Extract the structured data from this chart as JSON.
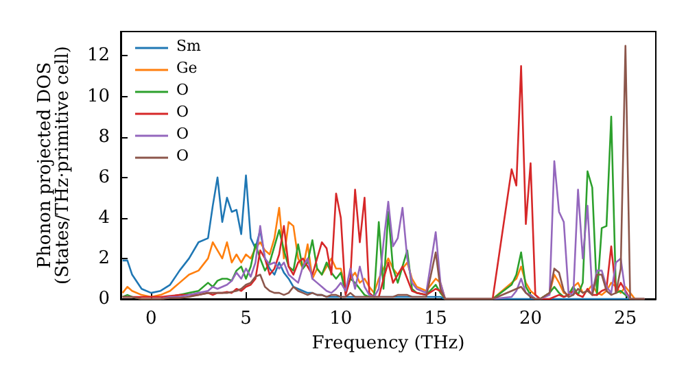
{
  "chart_data": {
    "type": "line",
    "xlabel": "Frequency (THz)",
    "ylabel": "Phonon projected DOS\n(States/THz·primitive cell)",
    "x": [
      -1.5,
      -1.25,
      -1,
      -0.5,
      0,
      0.5,
      1,
      1.5,
      2,
      2.5,
      3,
      3.25,
      3.5,
      3.75,
      4,
      4.25,
      4.5,
      4.75,
      5,
      5.25,
      5.5,
      5.75,
      6,
      6.25,
      6.5,
      6.75,
      7,
      7.25,
      7.5,
      7.75,
      8,
      8.25,
      8.5,
      8.75,
      9,
      9.25,
      9.5,
      9.75,
      10,
      10.25,
      10.5,
      10.75,
      11,
      11.25,
      11.5,
      11.75,
      12,
      12.25,
      12.5,
      12.75,
      13,
      13.25,
      13.5,
      13.75,
      14,
      14.5,
      15,
      15.25,
      15.5,
      16,
      18,
      19,
      19.25,
      19.5,
      19.75,
      20,
      20.25,
      20.5,
      21,
      21.25,
      21.5,
      21.75,
      22,
      22.25,
      22.5,
      22.75,
      23,
      23.25,
      23.5,
      23.75,
      24,
      24.25,
      24.5,
      24.75,
      25,
      25.25,
      25.5,
      26
    ],
    "series": [
      {
        "name": "Sm",
        "color": "#1f77b4",
        "values": [
          1.9,
          1.9,
          1.2,
          0.5,
          0.3,
          0.4,
          0.7,
          1.4,
          2.0,
          2.8,
          3.0,
          4.6,
          6.0,
          3.8,
          5.0,
          4.3,
          4.4,
          3.2,
          6.1,
          3.0,
          2.5,
          3.4,
          2.0,
          1.5,
          1.2,
          1.8,
          1.3,
          1.0,
          0.6,
          0.5,
          0.4,
          0.3,
          0.3,
          0.2,
          0.2,
          0.1,
          0.1,
          0.1,
          0.1,
          0.1,
          0.1,
          0.1,
          0.1,
          0.1,
          0.1,
          0.1,
          0.1,
          0.1,
          0.1,
          0.1,
          0.1,
          0.1,
          0.1,
          0.1,
          0.1,
          0.1,
          0.1,
          0.1,
          0,
          0,
          0,
          0,
          0,
          0,
          0,
          0,
          0,
          0,
          0,
          0,
          0,
          0,
          0,
          0,
          0,
          0,
          0,
          0,
          0,
          0,
          0,
          0,
          0,
          0,
          0,
          0,
          0,
          0
        ]
      },
      {
        "name": "Ge",
        "color": "#ff7f0e",
        "values": [
          0.3,
          0.6,
          0.4,
          0.2,
          0.1,
          0.2,
          0.4,
          0.8,
          1.2,
          1.4,
          2.0,
          2.8,
          2.4,
          2.0,
          2.8,
          1.8,
          2.2,
          1.8,
          2.2,
          2.0,
          2.5,
          2.8,
          2.4,
          2.2,
          3.0,
          4.5,
          2.0,
          3.8,
          3.6,
          2.0,
          1.5,
          2.7,
          1.0,
          1.5,
          1.2,
          1.6,
          2.0,
          1.5,
          1.5,
          0.5,
          1.0,
          1.3,
          0.8,
          1.0,
          0.6,
          0.3,
          1.0,
          1.5,
          2.0,
          1.5,
          1.2,
          1.5,
          1.8,
          1.0,
          0.6,
          0.4,
          1.0,
          0.8,
          0,
          0,
          0,
          0.8,
          1.0,
          1.6,
          0.8,
          0.4,
          0.2,
          0,
          0.3,
          1.2,
          0.8,
          0.3,
          0.2,
          0.6,
          0.8,
          0.3,
          0.4,
          0.7,
          0.3,
          0.2,
          0.4,
          0.8,
          0.6,
          0.3,
          0.6,
          0.3,
          0,
          0
        ]
      },
      {
        "name": "O",
        "color": "#2ca02c",
        "values": [
          0.1,
          0.2,
          0.1,
          0,
          0,
          0,
          0.1,
          0.2,
          0.3,
          0.4,
          0.8,
          0.6,
          0.9,
          1.0,
          1.0,
          0.9,
          1.4,
          1.6,
          1.0,
          1.6,
          2.7,
          2.0,
          1.4,
          1.8,
          2.6,
          3.4,
          2.4,
          1.6,
          1.4,
          2.7,
          1.5,
          1.8,
          2.9,
          1.5,
          1.2,
          1.8,
          1.3,
          1.0,
          1.3,
          0.3,
          1.0,
          0.8,
          0.5,
          0.2,
          0.1,
          0.1,
          3.8,
          0.5,
          4.3,
          1.5,
          0.8,
          1.6,
          2.4,
          0.5,
          0.3,
          0.2,
          0.7,
          0.3,
          0,
          0,
          0,
          0.7,
          1.2,
          2.3,
          0.6,
          0.2,
          0,
          0,
          0.3,
          0.6,
          0.3,
          0.1,
          0.2,
          0.6,
          0.2,
          0.8,
          6.3,
          5.5,
          0.2,
          3.5,
          3.6,
          9.0,
          0.3,
          0.4,
          0.2,
          0,
          0,
          0
        ]
      },
      {
        "name": "O",
        "color": "#d62728",
        "values": [
          0.1,
          0.1,
          0.1,
          0.1,
          0.1,
          0.1,
          0.15,
          0.2,
          0.2,
          0.2,
          0.3,
          0.2,
          0.3,
          0.3,
          0.35,
          0.3,
          0.5,
          0.4,
          0.6,
          0.7,
          1.0,
          2.4,
          2.0,
          1.2,
          1.5,
          2.2,
          3.6,
          1.6,
          1.2,
          1.8,
          2.0,
          1.6,
          1.2,
          2.0,
          2.8,
          2.5,
          1.2,
          5.2,
          4.0,
          0.2,
          1.0,
          5.4,
          2.8,
          5.0,
          0.3,
          0.1,
          0.1,
          1.0,
          1.8,
          0.8,
          1.2,
          1.6,
          1.0,
          0.4,
          0.3,
          0.2,
          0.5,
          0.4,
          0,
          0,
          0,
          6.4,
          5.6,
          11.5,
          3.7,
          6.7,
          0.2,
          0,
          0,
          0.1,
          0.2,
          0.1,
          0.2,
          0.4,
          0.2,
          0.1,
          0.5,
          0.2,
          0.2,
          0.4,
          0.5,
          2.6,
          0.3,
          0.8,
          0.4,
          0,
          0,
          0
        ]
      },
      {
        "name": "O",
        "color": "#9467bd",
        "values": [
          null,
          null,
          null,
          null,
          0,
          0,
          0.1,
          0.1,
          0.2,
          0.3,
          0.4,
          0.6,
          0.5,
          0.6,
          0.7,
          0.9,
          1.3,
          1.0,
          1.5,
          1.1,
          1.8,
          3.6,
          2.0,
          1.7,
          1.8,
          1.5,
          1.8,
          1.2,
          1.0,
          0.8,
          1.6,
          2.0,
          1.0,
          0.8,
          0.6,
          0.4,
          0.3,
          0.5,
          0.8,
          0.4,
          1.5,
          0.5,
          1.6,
          0.6,
          0.2,
          0.1,
          0.5,
          2.8,
          4.8,
          2.6,
          3.0,
          4.5,
          2.0,
          0.8,
          0.5,
          0.3,
          3.3,
          0.8,
          0,
          0,
          0,
          0.1,
          0.4,
          1.0,
          0.3,
          0.2,
          0,
          0,
          0.2,
          6.8,
          4.3,
          3.8,
          0.3,
          0.2,
          5.4,
          2.0,
          4.6,
          0.3,
          1.4,
          1.4,
          0.6,
          0.3,
          1.8,
          2.0,
          0.3,
          0,
          0,
          0
        ]
      },
      {
        "name": "O",
        "color": "#8c564b",
        "values": [
          0.1,
          0.1,
          0.1,
          0,
          0,
          0,
          0.05,
          0.05,
          0.1,
          0.2,
          0.3,
          0.3,
          0.3,
          0.3,
          0.3,
          0.35,
          0.4,
          0.5,
          0.7,
          0.8,
          1.1,
          1.2,
          0.6,
          0.4,
          0.3,
          0.3,
          0.2,
          0.3,
          0.6,
          0.4,
          0.3,
          0.2,
          0.3,
          0.2,
          0.2,
          0.1,
          0.2,
          0.2,
          0.1,
          0.1,
          0.3,
          0.1,
          0.1,
          0.1,
          0.1,
          0.1,
          0.1,
          0.1,
          0.1,
          0.1,
          0.2,
          0.2,
          0.2,
          0.1,
          0.1,
          0.1,
          2.3,
          0.5,
          0,
          0,
          0,
          0.4,
          0.5,
          0.6,
          0.3,
          0.1,
          0,
          0,
          0.3,
          1.5,
          1.3,
          0.4,
          0.1,
          0.2,
          0.5,
          0.3,
          0.4,
          0.2,
          1.2,
          1.2,
          0.4,
          0.2,
          0.3,
          1.5,
          12.5,
          0,
          0,
          0
        ]
      }
    ],
    "xlim": [
      -1.6,
      26.6
    ],
    "xticks": [
      0,
      5,
      10,
      15,
      20,
      25
    ],
    "ylim": [
      0,
      13.2
    ],
    "yticks": [
      0,
      2,
      4,
      6,
      8,
      10,
      12
    ],
    "legend": "top left",
    "grid": false,
    "marker": "none",
    "line_style": "solid"
  }
}
